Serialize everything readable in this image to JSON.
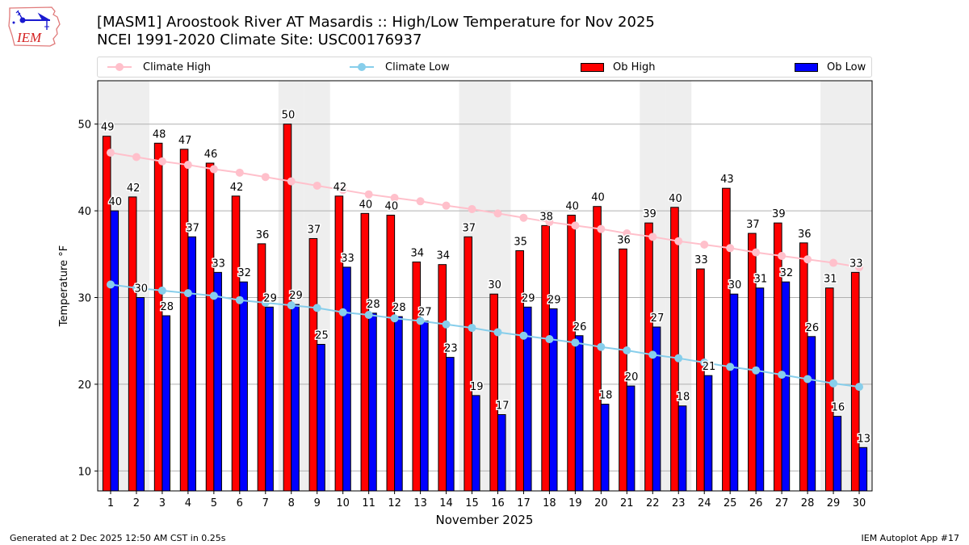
{
  "header": {
    "logo_text": "IEM",
    "title_line1": "[MASM1] Aroostook River  AT Masardis :: High/Low Temperature for Nov 2025",
    "title_line2": "NCEI 1991-2020 Climate Site: USC00176937"
  },
  "legend": {
    "items": [
      {
        "label": "Climate High",
        "kind": "line",
        "color": "#ffc0cb"
      },
      {
        "label": "Climate Low",
        "kind": "line",
        "color": "#87ceeb"
      },
      {
        "label": "Ob High",
        "kind": "patch",
        "color": "#ff0000"
      },
      {
        "label": "Ob Low",
        "kind": "patch",
        "color": "#0000ff"
      }
    ]
  },
  "footer": {
    "left": "Generated at 2 Dec 2025 12:50 AM CST in 0.25s",
    "right": "IEM Autoplot App #17"
  },
  "chart_data": {
    "type": "bar",
    "title": "[MASM1] Aroostook River  AT Masardis :: High/Low Temperature for Nov 2025",
    "subtitle": "NCEI 1991-2020 Climate Site: USC00176937",
    "xlabel": "November 2025",
    "ylabel": "Temperature °F",
    "ylim": [
      7.7,
      55
    ],
    "xlim": [
      0.5,
      30.5
    ],
    "yticks": [
      10,
      20,
      30,
      40,
      50
    ],
    "grid": "y",
    "legend_position": "top (above plot, expanded)",
    "weekend_shading_days": [
      1,
      2,
      8,
      9,
      15,
      16,
      22,
      23,
      29,
      30
    ],
    "weekend_shade_color": "#eeeeee",
    "categories": [
      "1",
      "2",
      "3",
      "4",
      "5",
      "6",
      "7",
      "8",
      "9",
      "10",
      "11",
      "12",
      "13",
      "14",
      "15",
      "16",
      "17",
      "18",
      "19",
      "20",
      "21",
      "22",
      "23",
      "24",
      "25",
      "26",
      "27",
      "28",
      "29",
      "30"
    ],
    "series": [
      {
        "name": "Ob High",
        "kind": "bar",
        "color": "#ff0000",
        "values": [
          48.6,
          41.6,
          47.8,
          47.1,
          45.5,
          41.7,
          36.2,
          50.0,
          36.8,
          41.7,
          39.7,
          39.5,
          34.1,
          33.8,
          37.0,
          30.4,
          35.4,
          38.3,
          39.5,
          40.5,
          35.6,
          38.6,
          40.4,
          33.3,
          42.6,
          37.4,
          38.6,
          36.3,
          31.1,
          32.9
        ],
        "labels": [
          "49",
          "42",
          "48",
          "47",
          "46",
          "42",
          "36",
          "50",
          "37",
          "42",
          "40",
          "40",
          "34",
          "34",
          "37",
          "30",
          "35",
          "38",
          "40",
          "40",
          "36",
          "39",
          "40",
          "33",
          "43",
          "37",
          "39",
          "36",
          "31",
          "33"
        ]
      },
      {
        "name": "Ob Low",
        "kind": "bar",
        "color": "#0000ff",
        "values": [
          40.0,
          30.0,
          27.9,
          37.0,
          32.9,
          31.8,
          28.9,
          29.2,
          24.6,
          33.5,
          28.2,
          27.8,
          27.3,
          23.1,
          18.7,
          16.5,
          28.9,
          28.7,
          25.6,
          17.7,
          19.8,
          26.6,
          17.5,
          21.0,
          30.4,
          31.1,
          31.8,
          25.5,
          16.3,
          12.7
        ],
        "labels": [
          "40",
          "30",
          "28",
          "37",
          "33",
          "32",
          "29",
          "29",
          "25",
          "33",
          "28",
          "28",
          "27",
          "23",
          "19",
          "17",
          "29",
          "29",
          "26",
          "18",
          "20",
          "27",
          "18",
          "21",
          "30",
          "31",
          "32",
          "26",
          "16",
          "13"
        ]
      },
      {
        "name": "Climate High",
        "kind": "line",
        "color": "#ffc0cb",
        "values": [
          46.7,
          46.2,
          45.7,
          45.3,
          44.8,
          44.4,
          43.9,
          43.4,
          42.9,
          42.4,
          41.9,
          41.5,
          41.1,
          40.6,
          40.2,
          39.7,
          39.2,
          38.7,
          38.3,
          37.9,
          37.4,
          37.0,
          36.5,
          36.1,
          35.7,
          35.2,
          34.8,
          34.4,
          34.0,
          33.5
        ]
      },
      {
        "name": "Climate Low",
        "kind": "line",
        "color": "#87ceeb",
        "values": [
          31.5,
          31.1,
          30.8,
          30.5,
          30.2,
          29.7,
          29.4,
          29.1,
          28.8,
          28.3,
          28.0,
          27.6,
          27.3,
          26.9,
          26.5,
          26.0,
          25.6,
          25.2,
          24.8,
          24.3,
          23.9,
          23.4,
          23.0,
          22.5,
          22.0,
          21.6,
          21.1,
          20.6,
          20.1,
          19.7
        ]
      }
    ]
  }
}
